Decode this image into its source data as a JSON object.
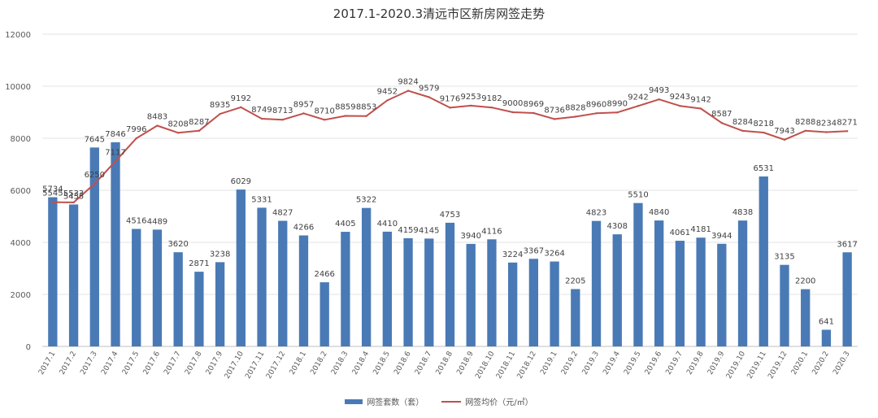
{
  "chart_data": {
    "type": "bar",
    "title": "2017.1-2020.3清远市区新房网签走势",
    "xlabel": "",
    "ylabel": "",
    "ylim": [
      0,
      12000
    ],
    "yticks": [
      0,
      2000,
      4000,
      6000,
      8000,
      10000,
      12000
    ],
    "grid": true,
    "legend_position": "bottom",
    "categories": [
      "2017.1",
      "2017.2",
      "2017.3",
      "2017.4",
      "2017.5",
      "2017.6",
      "2017.7",
      "2017.8",
      "2017.9",
      "2017.10",
      "2017.11",
      "2017.12",
      "2018.1",
      "2018.2",
      "2018.3",
      "2018.4",
      "2018.5",
      "2018.6",
      "2018.7",
      "2018.8",
      "2018.9",
      "2018.10",
      "2018.11",
      "2018.12",
      "2019.1",
      "2019.2",
      "2019.3",
      "2019.4",
      "2019.5",
      "2019.6",
      "2019.7",
      "2019.8",
      "2019.9",
      "2019.10",
      "2019.11",
      "2019.12",
      "2020.1",
      "2020.2",
      "2020.3"
    ],
    "series": [
      {
        "name": "网签套数（套）",
        "type": "bar",
        "color": "#4a7ab5",
        "values": [
          5734,
          5455,
          7645,
          7846,
          4516,
          4489,
          3620,
          2871,
          3238,
          6029,
          5331,
          4827,
          4266,
          2466,
          4405,
          5322,
          4410,
          4159,
          4145,
          4753,
          3940,
          4116,
          3224,
          3367,
          3264,
          2205,
          4823,
          4308,
          5510,
          4840,
          4061,
          4181,
          3944,
          4838,
          6531,
          3135,
          2200,
          641,
          3617
        ]
      },
      {
        "name": "网签均价（元/㎡）",
        "type": "line",
        "color": "#c0504d",
        "values": [
          5545,
          5533,
          6250,
          7117,
          7996,
          8483,
          8208,
          8287,
          8935,
          9192,
          8749,
          8713,
          8957,
          8710,
          8859,
          8853,
          9452,
          9824,
          9579,
          9176,
          9253,
          9182,
          9000,
          8969,
          8736,
          8828,
          8960,
          8990,
          9242,
          9493,
          9243,
          9142,
          8587,
          8284,
          8218,
          7943,
          8288,
          8234,
          8271
        ]
      }
    ]
  }
}
